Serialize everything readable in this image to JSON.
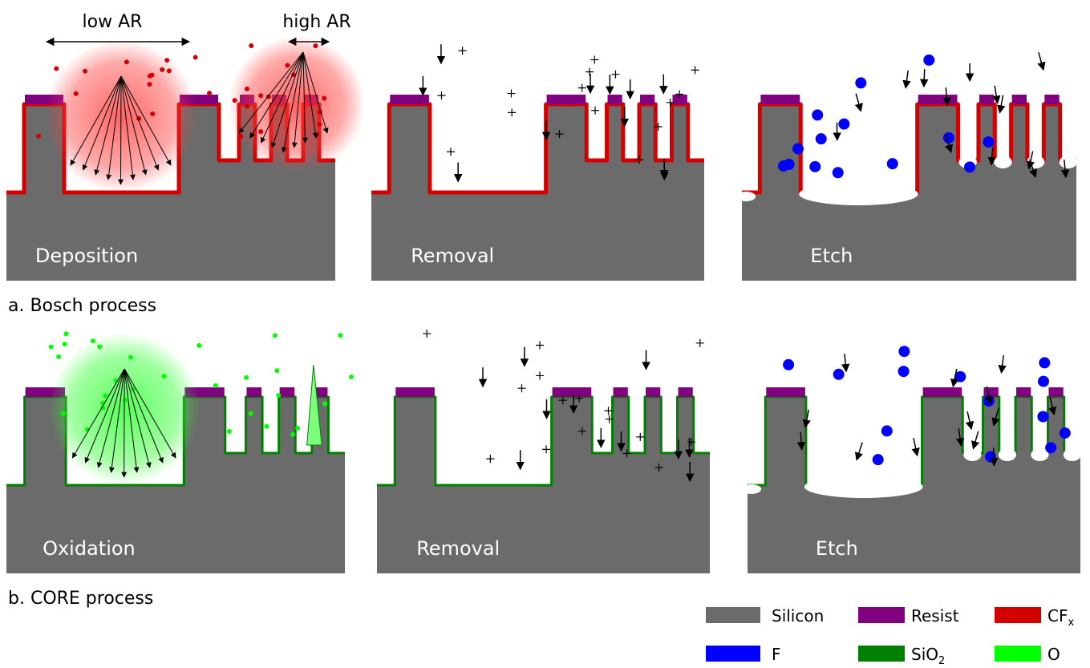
{
  "labels": {
    "low_ar": "low AR",
    "high_ar": "high AR"
  },
  "rows": [
    {
      "caption": "a. Bosch process",
      "panels": [
        "Deposition",
        "Removal",
        "Etch"
      ]
    },
    {
      "caption": "b. CORE process",
      "panels": [
        "Oxidation",
        "Removal",
        "Etch"
      ]
    }
  ],
  "legend": [
    {
      "label": "Silicon",
      "color": "#6b6b6b"
    },
    {
      "label": "Resist",
      "color": "#800080"
    },
    {
      "label": "CF",
      "subscript": "x",
      "color": "#d40000"
    },
    {
      "label": "F",
      "color": "#0000ff"
    },
    {
      "label": "SiO",
      "subscript": "2",
      "color": "#008000"
    },
    {
      "label": "O",
      "color": "#00ff00"
    }
  ]
}
